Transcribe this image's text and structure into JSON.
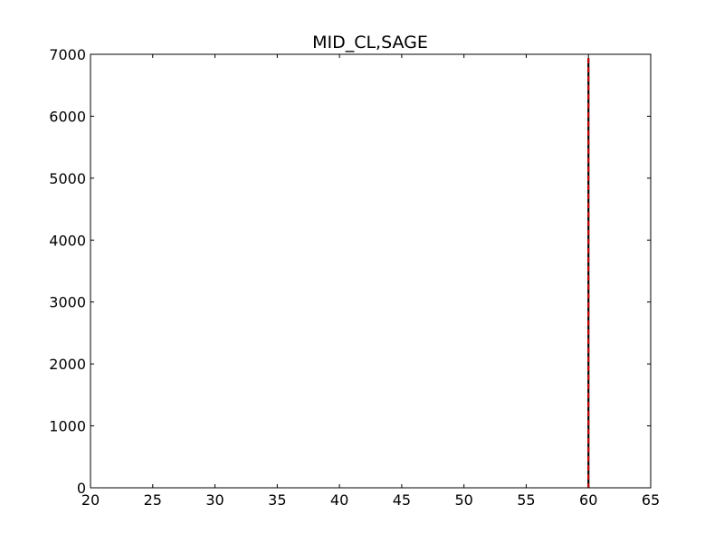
{
  "chart_data": {
    "type": "histogram",
    "title": "MID_CL,SAGE",
    "xlabel": "",
    "ylabel": "",
    "xlim": [
      20,
      65
    ],
    "ylim": [
      0,
      7000
    ],
    "x_ticks": [
      20,
      25,
      30,
      35,
      40,
      45,
      50,
      55,
      60,
      65
    ],
    "y_ticks": [
      0,
      1000,
      2000,
      3000,
      4000,
      5000,
      6000,
      7000
    ],
    "grid": false,
    "legend": "none",
    "bars": [
      {
        "x_start": 59.95,
        "x_end": 60.05,
        "value": 6920
      }
    ],
    "reference_lines": [
      {
        "x": 60,
        "color": "#000000",
        "style": "solid"
      },
      {
        "x": 60,
        "color": "#cc0000",
        "style": "dashed"
      }
    ],
    "colors": {
      "bar": "#000000",
      "axes": "#000000",
      "mean_line": "#cc0000"
    }
  }
}
